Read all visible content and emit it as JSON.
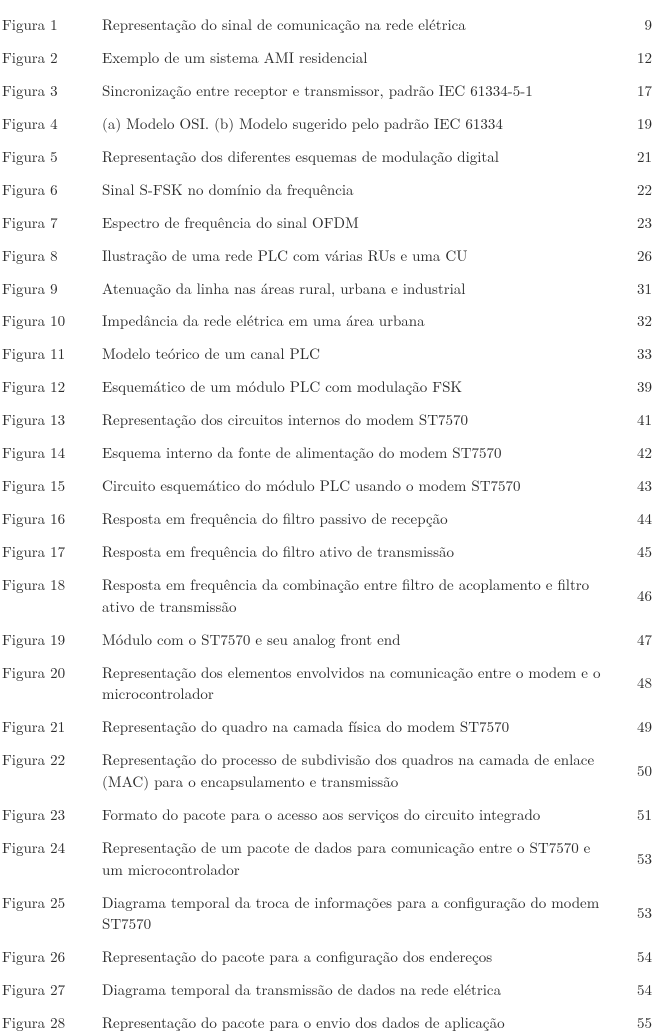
{
  "list_of_figures": {
    "label_prefix": "Figura",
    "entries": [
      {
        "num": "1",
        "title": "Representação do sinal de comunicação na rede elétrica",
        "page": "9"
      },
      {
        "num": "2",
        "title": "Exemplo de um sistema AMI residencial",
        "page": "12"
      },
      {
        "num": "3",
        "title": "Sincronização entre receptor e transmissor, padrão IEC 61334-5-1",
        "page": "17"
      },
      {
        "num": "4",
        "title": "(a) Modelo OSI. (b) Modelo sugerido pelo padrão IEC 61334",
        "page": "19"
      },
      {
        "num": "5",
        "title": "Representação dos diferentes esquemas de modulação digital",
        "page": "21"
      },
      {
        "num": "6",
        "title": "Sinal S-FSK no domínio da frequência",
        "page": "22"
      },
      {
        "num": "7",
        "title": "Espectro de frequência do sinal OFDM",
        "page": "23"
      },
      {
        "num": "8",
        "title": "Ilustração de uma rede PLC com várias RUs e uma CU",
        "page": "26"
      },
      {
        "num": "9",
        "title": "Atenuação da linha nas áreas rural, urbana e industrial",
        "page": "31"
      },
      {
        "num": "10",
        "title": "Impedância da rede elétrica em uma área urbana",
        "page": "32"
      },
      {
        "num": "11",
        "title": "Modelo teórico de um canal PLC",
        "page": "33"
      },
      {
        "num": "12",
        "title": "Esquemático de um módulo PLC com modulação FSK",
        "page": "39"
      },
      {
        "num": "13",
        "title": "Representação dos circuitos internos do modem ST7570",
        "page": "41"
      },
      {
        "num": "14",
        "title": "Esquema interno da fonte de alimentação do modem ST7570",
        "page": "42"
      },
      {
        "num": "15",
        "title": "Circuito esquemático do módulo PLC usando o modem ST7570",
        "page": "43"
      },
      {
        "num": "16",
        "title": "Resposta em frequência do filtro passivo de recepção",
        "page": "44"
      },
      {
        "num": "17",
        "title": "Resposta em frequência do filtro ativo de transmissão",
        "page": "45"
      },
      {
        "num": "18",
        "title": "Resposta em frequência da combinação entre filtro de acoplamento e filtro ativo de transmissão",
        "page": "46"
      },
      {
        "num": "19",
        "title": "Módulo com o ST7570 e seu analog front end",
        "page": "47"
      },
      {
        "num": "20",
        "title": "Representação dos elementos envolvidos na comunicação entre o modem e o microcontrolador",
        "page": "48"
      },
      {
        "num": "21",
        "title": "Representação do quadro na camada física do modem ST7570",
        "page": "49"
      },
      {
        "num": "22",
        "title": "Representação do processo de subdivisão dos quadros na camada de enlace (MAC) para o encapsulamento e transmissão",
        "page": "50"
      },
      {
        "num": "23",
        "title": "Formato do pacote para o acesso aos serviços do circuito integrado",
        "page": "51"
      },
      {
        "num": "24",
        "title": "Representação de um pacote de dados para comunicação entre o ST7570 e um microcontrolador",
        "page": "53"
      },
      {
        "num": "25",
        "title": "Diagrama temporal da troca de informações para a configuração do modem ST7570",
        "page": "53"
      },
      {
        "num": "26",
        "title": "Representação do pacote para a configuração dos endereços",
        "page": "54"
      },
      {
        "num": "27",
        "title": "Diagrama temporal da transmissão de dados na rede elétrica",
        "page": "54"
      },
      {
        "num": "28",
        "title": "Representação do pacote para o envio dos dados de aplicação",
        "page": "55"
      }
    ],
    "font_size_pt": 11,
    "text_color": "#2b2b2b",
    "background_color": "#ffffff"
  }
}
